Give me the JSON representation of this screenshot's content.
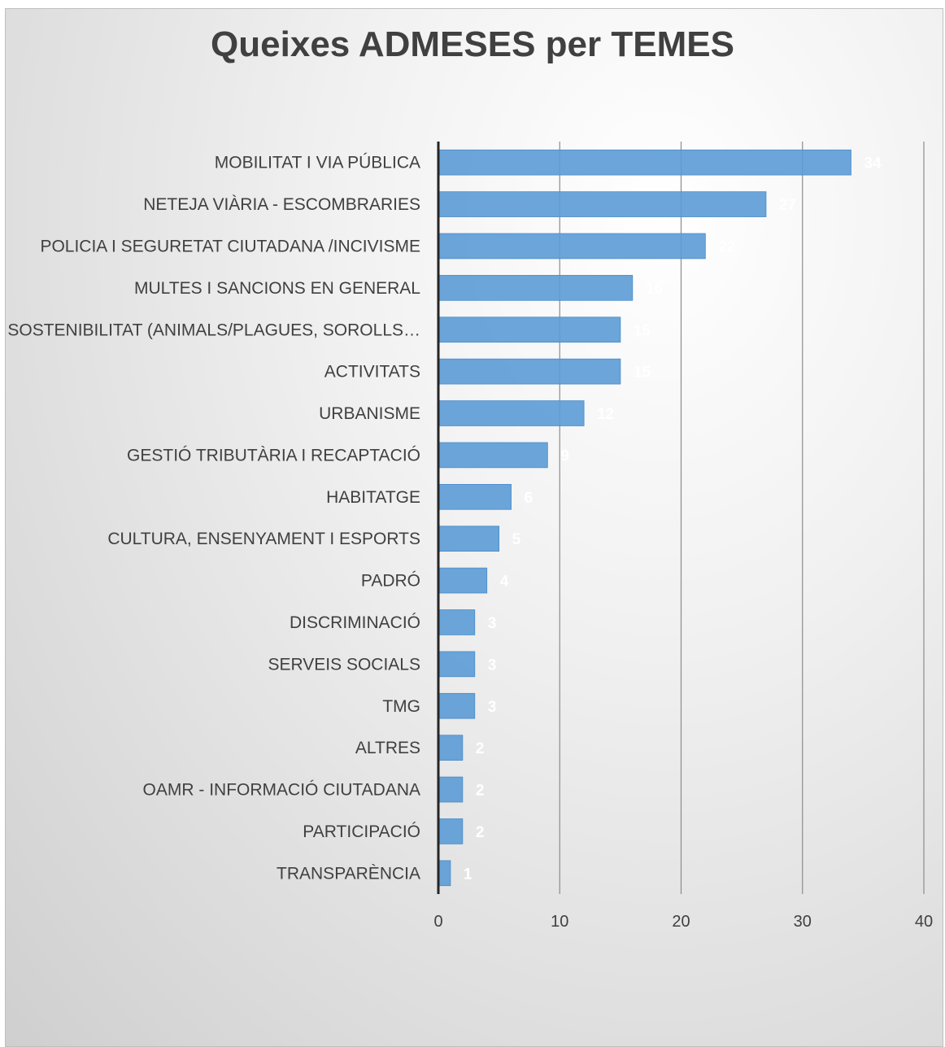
{
  "chart_data": {
    "type": "bar",
    "orientation": "horizontal",
    "title": "Queixes ADMESES per TEMES",
    "xlim": [
      0,
      40
    ],
    "x_ticks": [
      0,
      10,
      20,
      30,
      40
    ],
    "grid": true,
    "bar_color": "#5b9bd5",
    "categories": [
      "MOBILITAT I VIA PÚBLICA",
      "NETEJA VIÀRIA - ESCOMBRARIES",
      "POLICIA I SEGURETAT CIUTADANA /INCIVISME",
      "MULTES I SANCIONS EN GENERAL",
      "SOSTENIBILITAT (ANIMALS/PLAGUES, SOROLLS…",
      "ACTIVITATS",
      "URBANISME",
      "GESTIÓ TRIBUTÀRIA I RECAPTACIÓ",
      "HABITATGE",
      "CULTURA, ENSENYAMENT I ESPORTS",
      "PADRÓ",
      "DISCRIMINACIÓ",
      "SERVEIS SOCIALS",
      "TMG",
      "ALTRES ",
      "OAMR - INFORMACIÓ CIUTADANA",
      "PARTICIPACIÓ",
      "TRANSPARÈNCIA"
    ],
    "values": [
      34,
      27,
      22,
      16,
      15,
      15,
      12,
      9,
      6,
      5,
      4,
      3,
      3,
      3,
      2,
      2,
      2,
      1
    ]
  }
}
